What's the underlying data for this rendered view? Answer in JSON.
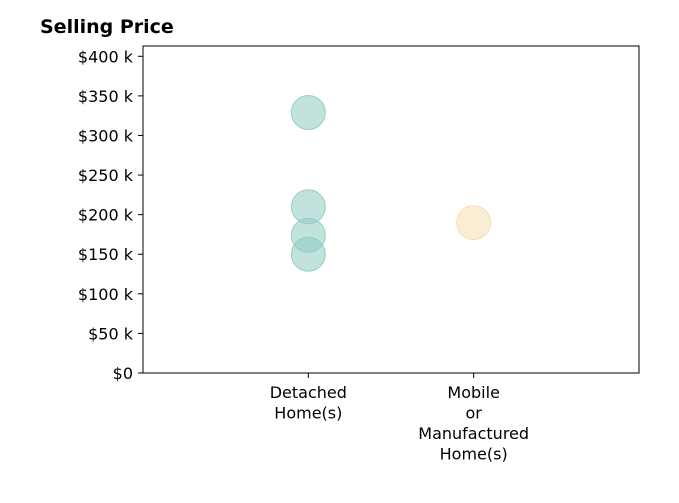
{
  "chart_data": {
    "type": "scatter",
    "title": "Selling Price",
    "xlabel": "",
    "ylabel": "",
    "categories": [
      [
        "Detached",
        "Home(s)"
      ],
      [
        "Mobile",
        "or",
        "Manufactured",
        "Home(s)"
      ]
    ],
    "yticks": [
      {
        "value": 0,
        "label": "$0"
      },
      {
        "value": 50000,
        "label": "$50 k"
      },
      {
        "value": 100000,
        "label": "$100 k"
      },
      {
        "value": 150000,
        "label": "$150 k"
      },
      {
        "value": 200000,
        "label": "$200 k"
      },
      {
        "value": 250000,
        "label": "$250 k"
      },
      {
        "value": 300000,
        "label": "$300 k"
      },
      {
        "value": 350000,
        "label": "$350 k"
      },
      {
        "value": 400000,
        "label": "$400 k"
      }
    ],
    "ylim": [
      0,
      413000
    ],
    "xlim": [
      -1,
      2
    ],
    "grid": false,
    "series": [
      {
        "category_index": 0,
        "color": "#8ecbc1",
        "values": [
          329000,
          210000,
          174000,
          150000
        ]
      },
      {
        "category_index": 1,
        "color": "#f5deb0",
        "values": [
          190000
        ]
      }
    ]
  }
}
